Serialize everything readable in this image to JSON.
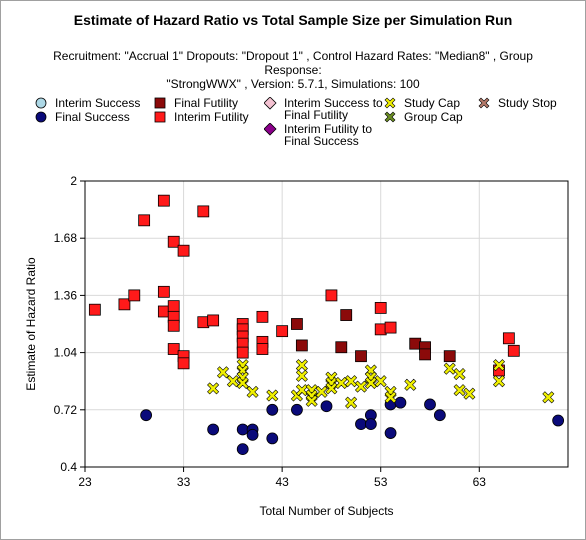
{
  "chart_data": {
    "type": "scatter",
    "title": "Estimate of Hazard Ratio vs Total Sample Size per Simulation Run",
    "subtitle_line1": "Recruitment: \"Accrual 1\" Dropouts: \"Dropout 1\" , Control Hazard Rates: \"Median8\" , Group Response:",
    "subtitle_line2": "\"StrongWWX\" , Version: 5.7.1, Simulations: 100",
    "xlabel": "Total Number of Subjects",
    "ylabel": "Estimate of Hazard Ratio",
    "xlim": [
      23,
      72
    ],
    "ylim": [
      0.4,
      2
    ],
    "xticks": [
      "23",
      "33",
      "43",
      "53",
      "63"
    ],
    "xtick_values": [
      23,
      33,
      43,
      53,
      63
    ],
    "yticks": [
      "0.4",
      "0.72",
      "1.04",
      "1.36",
      "1.68",
      "2"
    ],
    "ytick_values": [
      0.4,
      0.72,
      1.04,
      1.36,
      1.68,
      2.0
    ],
    "grid": true,
    "legend_position": "top",
    "series": [
      {
        "name": "Interim Success",
        "marker": "circle",
        "color": "#add8e6",
        "stroke": "#000000",
        "points": []
      },
      {
        "name": "Final Success",
        "marker": "circle",
        "color": "#0a0a7a",
        "stroke": "#000000",
        "points": [
          [
            29.2,
            0.69
          ],
          [
            36.0,
            0.61
          ],
          [
            39.0,
            0.61
          ],
          [
            40.0,
            0.61
          ],
          [
            40.0,
            0.58
          ],
          [
            39.0,
            0.5
          ],
          [
            42.0,
            0.72
          ],
          [
            42.0,
            0.56
          ],
          [
            44.5,
            0.72
          ],
          [
            47.5,
            0.74
          ],
          [
            51.0,
            0.64
          ],
          [
            52.0,
            0.69
          ],
          [
            52.0,
            0.64
          ],
          [
            54.0,
            0.75
          ],
          [
            54.0,
            0.59
          ],
          [
            55.0,
            0.76
          ],
          [
            58.0,
            0.75
          ],
          [
            59.0,
            0.69
          ],
          [
            71.0,
            0.66
          ]
        ]
      },
      {
        "name": "Final Futility",
        "marker": "square",
        "color": "#8b0a0a",
        "stroke": "#000000",
        "points": [
          [
            44.5,
            1.2
          ],
          [
            45.0,
            1.08
          ],
          [
            49.0,
            1.07
          ],
          [
            49.5,
            1.25
          ],
          [
            51.0,
            1.02
          ],
          [
            56.5,
            1.09
          ],
          [
            57.5,
            1.07
          ],
          [
            57.5,
            1.03
          ],
          [
            60.0,
            1.02
          ]
        ]
      },
      {
        "name": "Interim Futility",
        "marker": "square",
        "color": "#ff1a1a",
        "stroke": "#000000",
        "points": [
          [
            24.0,
            1.28
          ],
          [
            27.0,
            1.31
          ],
          [
            28.0,
            1.36
          ],
          [
            29.0,
            1.78
          ],
          [
            31.0,
            1.89
          ],
          [
            31.0,
            1.38
          ],
          [
            31.0,
            1.27
          ],
          [
            32.0,
            1.66
          ],
          [
            32.0,
            1.3
          ],
          [
            32.0,
            1.24
          ],
          [
            32.0,
            1.19
          ],
          [
            32.0,
            1.06
          ],
          [
            33.0,
            1.61
          ],
          [
            33.0,
            1.02
          ],
          [
            33.0,
            0.98
          ],
          [
            35.0,
            1.83
          ],
          [
            35.0,
            1.21
          ],
          [
            36.0,
            1.22
          ],
          [
            39.0,
            1.2
          ],
          [
            39.0,
            1.17
          ],
          [
            39.0,
            1.13
          ],
          [
            39.0,
            1.09
          ],
          [
            39.0,
            1.04
          ],
          [
            41.0,
            1.24
          ],
          [
            41.0,
            1.1
          ],
          [
            41.0,
            1.06
          ],
          [
            43.0,
            1.16
          ],
          [
            48.0,
            1.36
          ],
          [
            53.0,
            1.29
          ],
          [
            53.0,
            1.17
          ],
          [
            54.0,
            1.18
          ],
          [
            65.0,
            0.94
          ],
          [
            66.0,
            1.12
          ],
          [
            66.5,
            1.05
          ]
        ]
      },
      {
        "name": "Interim Success to Final Futility",
        "marker": "diamond",
        "color": "#f4c2d2",
        "stroke": "#000000",
        "points": []
      },
      {
        "name": "Interim Futility to Final Success",
        "marker": "diamond",
        "color": "#8b008b",
        "stroke": "#000000",
        "points": []
      },
      {
        "name": "Study Cap",
        "marker": "x",
        "color": "#f0f000",
        "stroke": "#000000",
        "points": [
          [
            36.0,
            0.84
          ],
          [
            37.0,
            0.93
          ],
          [
            38.0,
            0.88
          ],
          [
            39.0,
            0.97
          ],
          [
            39.0,
            0.94
          ],
          [
            39.0,
            0.9
          ],
          [
            39.0,
            0.87
          ],
          [
            40.0,
            0.82
          ],
          [
            42.0,
            0.8
          ],
          [
            44.5,
            0.8
          ],
          [
            45.0,
            0.97
          ],
          [
            45.0,
            0.91
          ],
          [
            45.0,
            0.83
          ],
          [
            46.0,
            0.83
          ],
          [
            46.0,
            0.8
          ],
          [
            46.0,
            0.77
          ],
          [
            47.0,
            0.82
          ],
          [
            48.0,
            0.9
          ],
          [
            48.0,
            0.87
          ],
          [
            48.0,
            0.84
          ],
          [
            49.0,
            0.87
          ],
          [
            50.0,
            0.88
          ],
          [
            50.0,
            0.76
          ],
          [
            51.0,
            0.85
          ],
          [
            52.0,
            0.94
          ],
          [
            52.0,
            0.9
          ],
          [
            52.0,
            0.87
          ],
          [
            53.0,
            0.88
          ],
          [
            54.0,
            0.82
          ],
          [
            54.0,
            0.79
          ],
          [
            56.0,
            0.86
          ],
          [
            60.0,
            0.95
          ],
          [
            61.0,
            0.92
          ],
          [
            61.0,
            0.83
          ],
          [
            62.0,
            0.81
          ],
          [
            65.0,
            0.97
          ],
          [
            65.0,
            0.88
          ],
          [
            70.0,
            0.79
          ]
        ]
      },
      {
        "name": "Group Cap",
        "marker": "x",
        "color": "#6b8e23",
        "stroke": "#000000",
        "points": []
      },
      {
        "name": "Study Stop",
        "marker": "x",
        "color": "#b57a6a",
        "stroke": "#000000",
        "points": []
      }
    ]
  }
}
